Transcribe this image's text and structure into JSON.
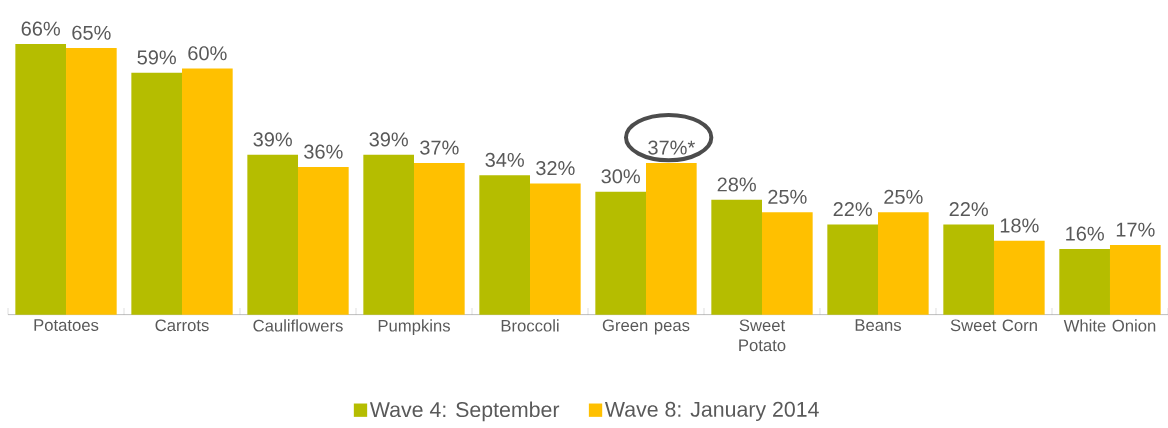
{
  "chart_data": {
    "type": "bar",
    "categories": [
      "Potatoes",
      "Carrots",
      "Cauliflowers",
      "Pumpkins",
      "Broccoli",
      "Green peas",
      "Sweet Potato",
      "Beans",
      "Sweet Corn",
      "White Onion"
    ],
    "series": [
      {
        "name": "Wave 4: September",
        "color": "#b5bd00",
        "values": [
          66,
          59,
          39,
          39,
          34,
          30,
          28,
          22,
          22,
          16
        ],
        "value_labels": [
          "66%",
          "59%",
          "39%",
          "39%",
          "34%",
          "30%",
          "28%",
          "22%",
          "22%",
          "16%"
        ]
      },
      {
        "name": "Wave 8: January 2014",
        "color": "#ffc000",
        "values": [
          65,
          60,
          36,
          37,
          32,
          37,
          25,
          25,
          18,
          17
        ],
        "value_labels": [
          "65%",
          "60%",
          "36%",
          "37%",
          "32%",
          "37%*",
          "25%",
          "25%",
          "18%",
          "17%"
        ]
      }
    ],
    "legend": "bottom"
  }
}
